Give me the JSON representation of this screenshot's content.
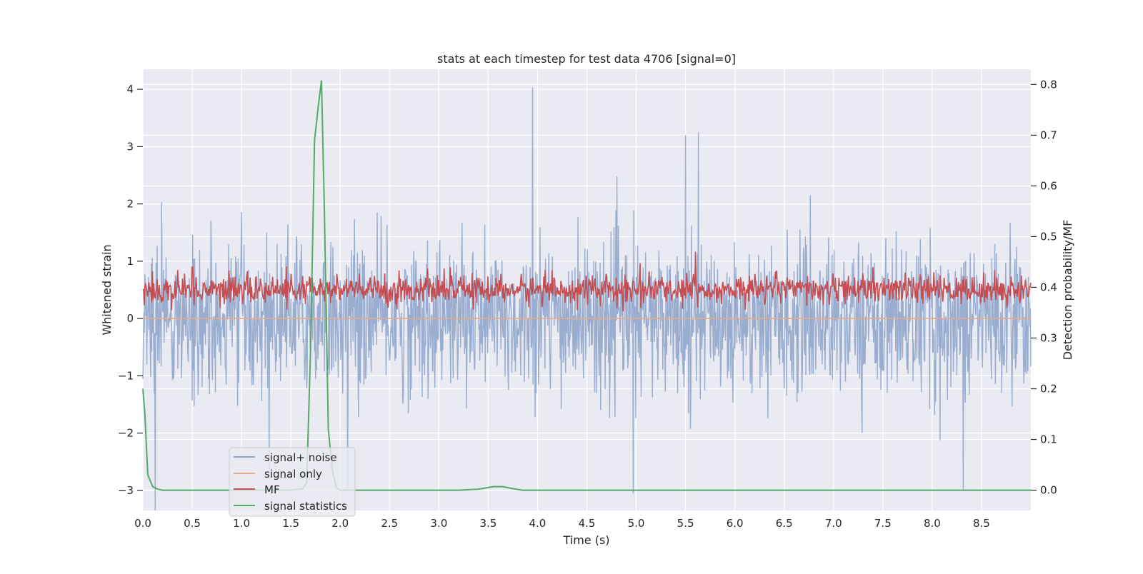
{
  "chart_data": {
    "type": "line",
    "title": "stats at each timestep for test data 4706 [signal=0]",
    "xlabel": "Time (s)",
    "ylabel_left": "Whitened strain",
    "ylabel_right": "Detection probability/MF",
    "xlim": [
      0.0,
      9.0
    ],
    "ylim_left": [
      -3.35,
      4.35
    ],
    "ylim_right": [
      -0.04,
      0.83
    ],
    "xticks": [
      0.0,
      0.5,
      1.0,
      1.5,
      2.0,
      2.5,
      3.0,
      3.5,
      4.0,
      4.5,
      5.0,
      5.5,
      6.0,
      6.5,
      7.0,
      7.5,
      8.0,
      8.5
    ],
    "xtick_labels": [
      "0.0",
      "0.5",
      "1.0",
      "1.5",
      "2.0",
      "2.5",
      "3.0",
      "3.5",
      "4.0",
      "4.5",
      "5.0",
      "5.5",
      "6.0",
      "6.5",
      "7.0",
      "7.5",
      "8.0",
      "8.5"
    ],
    "yticks_left": [
      -3,
      -2,
      -1,
      0,
      1,
      2,
      3,
      4
    ],
    "ytick_labels_left": [
      "−3",
      "−2",
      "−1",
      "0",
      "1",
      "2",
      "3",
      "4"
    ],
    "yticks_right": [
      0.0,
      0.1,
      0.2,
      0.3,
      0.4,
      0.5,
      0.6,
      0.7,
      0.8
    ],
    "ytick_labels_right": [
      "0.0",
      "0.1",
      "0.2",
      "0.3",
      "0.4",
      "0.5",
      "0.6",
      "0.7",
      "0.8"
    ],
    "grid": true,
    "legend_position": "lower-left",
    "series": [
      {
        "name": "signal+ noise",
        "axis": "left",
        "color": "#8fa6cc",
        "style": "noisy strain, approx. symmetric about 0, amplitude about ±1.2 with spikes to ±2.5",
        "notable_peaks": [
          [
            3.95,
            4.03
          ],
          [
            5.63,
            3.25
          ],
          [
            5.5,
            3.2
          ],
          [
            4.97,
            -3.05
          ],
          [
            1.28,
            -2.8
          ]
        ]
      },
      {
        "name": "signal only",
        "axis": "left",
        "color": "#e8a98a",
        "x": [
          0.0,
          9.0
        ],
        "y": [
          0.0,
          0.0
        ]
      },
      {
        "name": "MF",
        "axis": "right",
        "color": "#c44e52",
        "style": "noisy matched-filter output between about 0.35 and 0.45",
        "notable_peaks": [
          [
            5.6,
            0.47
          ],
          [
            0.5,
            0.44
          ],
          [
            7.4,
            0.44
          ]
        ]
      },
      {
        "name": "signal statistics",
        "axis": "right",
        "color": "#55a868",
        "x": [
          0.0,
          0.02,
          0.05,
          0.1,
          0.15,
          0.2,
          0.3,
          1.0,
          1.5,
          1.62,
          1.66,
          1.7,
          1.74,
          1.78,
          1.81,
          1.84,
          1.88,
          1.92,
          1.96,
          2.0,
          2.5,
          3.2,
          3.4,
          3.55,
          3.65,
          3.75,
          3.85,
          4.0,
          5.0,
          9.0
        ],
        "y": [
          0.2,
          0.15,
          0.03,
          0.007,
          0.002,
          0.0,
          0.0,
          0.0,
          0.0,
          0.003,
          0.015,
          0.28,
          0.69,
          0.76,
          0.808,
          0.55,
          0.12,
          0.04,
          0.005,
          0.0,
          0.0,
          0.0,
          0.002,
          0.007,
          0.007,
          0.003,
          0.0,
          0.0,
          0.0,
          0.0
        ]
      }
    ]
  }
}
